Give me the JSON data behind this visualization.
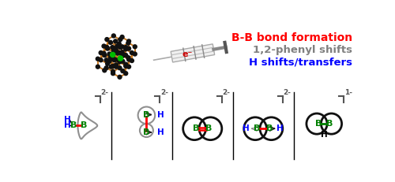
{
  "title_line1": "B-B bond formation",
  "title_line2": "1,2-phenyl shifts",
  "title_line3": "H shifts/transfers",
  "color_line1": "#ff0000",
  "color_line2": "#808080",
  "color_line3": "#0000ff",
  "bg_color": "#ffffff",
  "bond_orange": "#c87820",
  "atom_black": "#111111",
  "atom_green": "#00bb00",
  "gray_shape": "#909090",
  "dark_shape": "#111111",
  "B_color": "#008000",
  "H_color": "#0000ff",
  "red_bond": "#ff0000",
  "bracket_color": "#555555",
  "panel_divider": "#000000"
}
